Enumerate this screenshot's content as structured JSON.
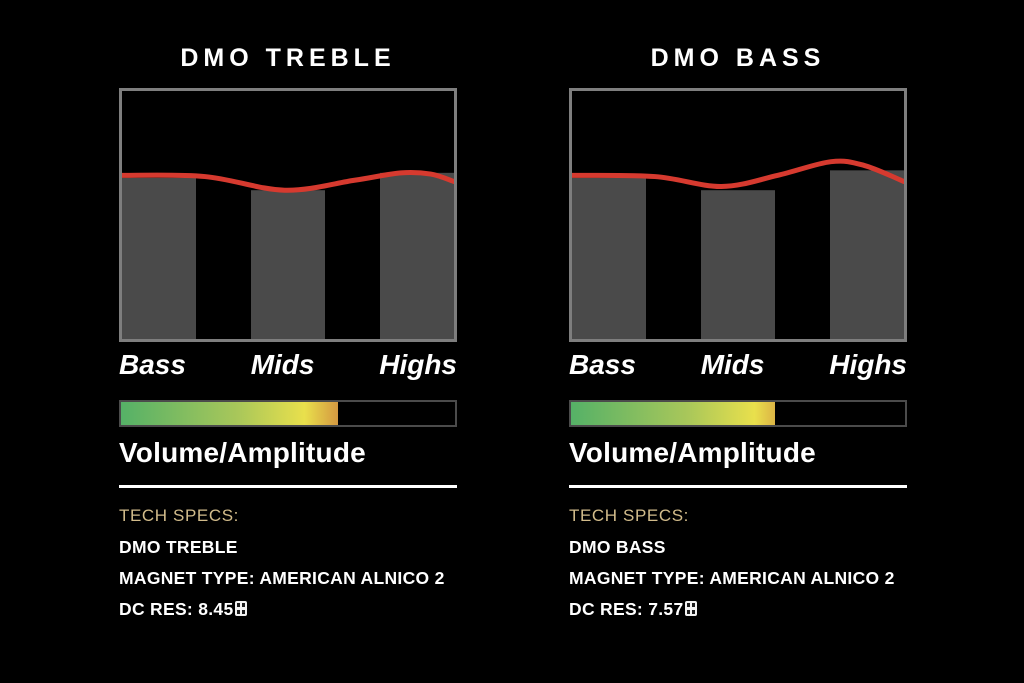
{
  "colors": {
    "background": "#000000",
    "chart_border": "#7e7e7e",
    "bar_fill": "#4a4a4a",
    "line_red": "#d63a2f",
    "accent_tan": "#d2bc8b",
    "text_white": "#ffffff",
    "meter_border": "#4b4b4b",
    "meter_gradient": [
      "#55b167",
      "#a9c75a",
      "#e9e04c",
      "#d29140"
    ]
  },
  "chart_data": [
    {
      "type": "bar+line",
      "title": "DMO TREBLE",
      "categories": [
        "Bass",
        "Mids",
        "Highs"
      ],
      "bar_values": [
        0.65,
        0.6,
        0.67
      ],
      "line_points": [
        [
          0,
          0.66
        ],
        [
          0.25,
          0.655
        ],
        [
          0.49,
          0.6
        ],
        [
          0.7,
          0.64
        ],
        [
          0.84,
          0.67
        ],
        [
          0.93,
          0.665
        ],
        [
          1,
          0.635
        ]
      ],
      "ylim": [
        0,
        1
      ],
      "legend": "none",
      "grid": "off",
      "volume_label": "Volume/Amplitude",
      "volume_fill_pct": 65,
      "specs": {
        "heading": "TECH SPECS:",
        "model": "DMO TREBLE",
        "magnet": "MAGNET TYPE: AMERICAN ALNICO 2",
        "dc_res": "DC RES: 8.45"
      }
    },
    {
      "type": "bar+line",
      "title": "DMO BASS",
      "categories": [
        "Bass",
        "Mids",
        "Highs"
      ],
      "bar_values": [
        0.65,
        0.6,
        0.68
      ],
      "line_points": [
        [
          0,
          0.66
        ],
        [
          0.25,
          0.655
        ],
        [
          0.45,
          0.615
        ],
        [
          0.62,
          0.66
        ],
        [
          0.78,
          0.715
        ],
        [
          0.88,
          0.7
        ],
        [
          1,
          0.635
        ]
      ],
      "ylim": [
        0,
        1
      ],
      "legend": "none",
      "grid": "off",
      "volume_label": "Volume/Amplitude",
      "volume_fill_pct": 61,
      "specs": {
        "heading": "TECH SPECS:",
        "model": "DMO BASS",
        "magnet": "MAGNET TYPE: AMERICAN ALNICO 2",
        "dc_res": "DC RES: 7.57"
      }
    }
  ]
}
